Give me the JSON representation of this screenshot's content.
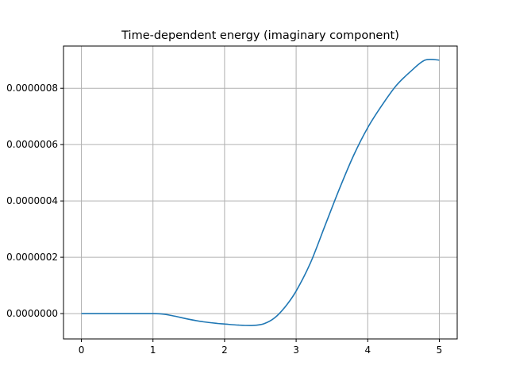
{
  "chart_data": {
    "type": "line",
    "title": "Time-dependent energy (imaginary component)",
    "xlabel": "",
    "ylabel": "",
    "xlim": [
      -0.25,
      5.25
    ],
    "ylim": [
      -9e-08,
      9.5e-07
    ],
    "grid": true,
    "x_ticks": [
      0,
      1,
      2,
      3,
      4,
      5
    ],
    "x_tick_labels": [
      "0",
      "1",
      "2",
      "3",
      "4",
      "5"
    ],
    "y_ticks": [
      0,
      2e-07,
      4e-07,
      6e-07,
      8e-07
    ],
    "y_tick_labels": [
      "0.0000000",
      "0.0000002",
      "0.0000004",
      "0.0000006",
      "0.0000008"
    ],
    "series": [
      {
        "color": "#1f77b4",
        "x": [
          0,
          0.25,
          0.5,
          0.75,
          1.0,
          1.15,
          1.3,
          1.5,
          1.7,
          1.9,
          2.0,
          2.2,
          2.4,
          2.55,
          2.7,
          2.85,
          3.0,
          3.2,
          3.4,
          3.6,
          3.8,
          4.0,
          4.2,
          4.4,
          4.6,
          4.8,
          5.0
        ],
        "y": [
          0,
          0,
          0,
          0,
          0,
          -2e-09,
          -9e-09,
          -2e-08,
          -2.9e-08,
          -3.5e-08,
          -3.7e-08,
          -4.1e-08,
          -4.2e-08,
          -3.6e-08,
          -1.5e-08,
          2.5e-08,
          8e-08,
          1.8e-07,
          3.1e-07,
          4.4e-07,
          5.6e-07,
          6.6e-07,
          7.4e-07,
          8.1e-07,
          8.6e-07,
          9e-07,
          9e-07
        ]
      }
    ]
  }
}
